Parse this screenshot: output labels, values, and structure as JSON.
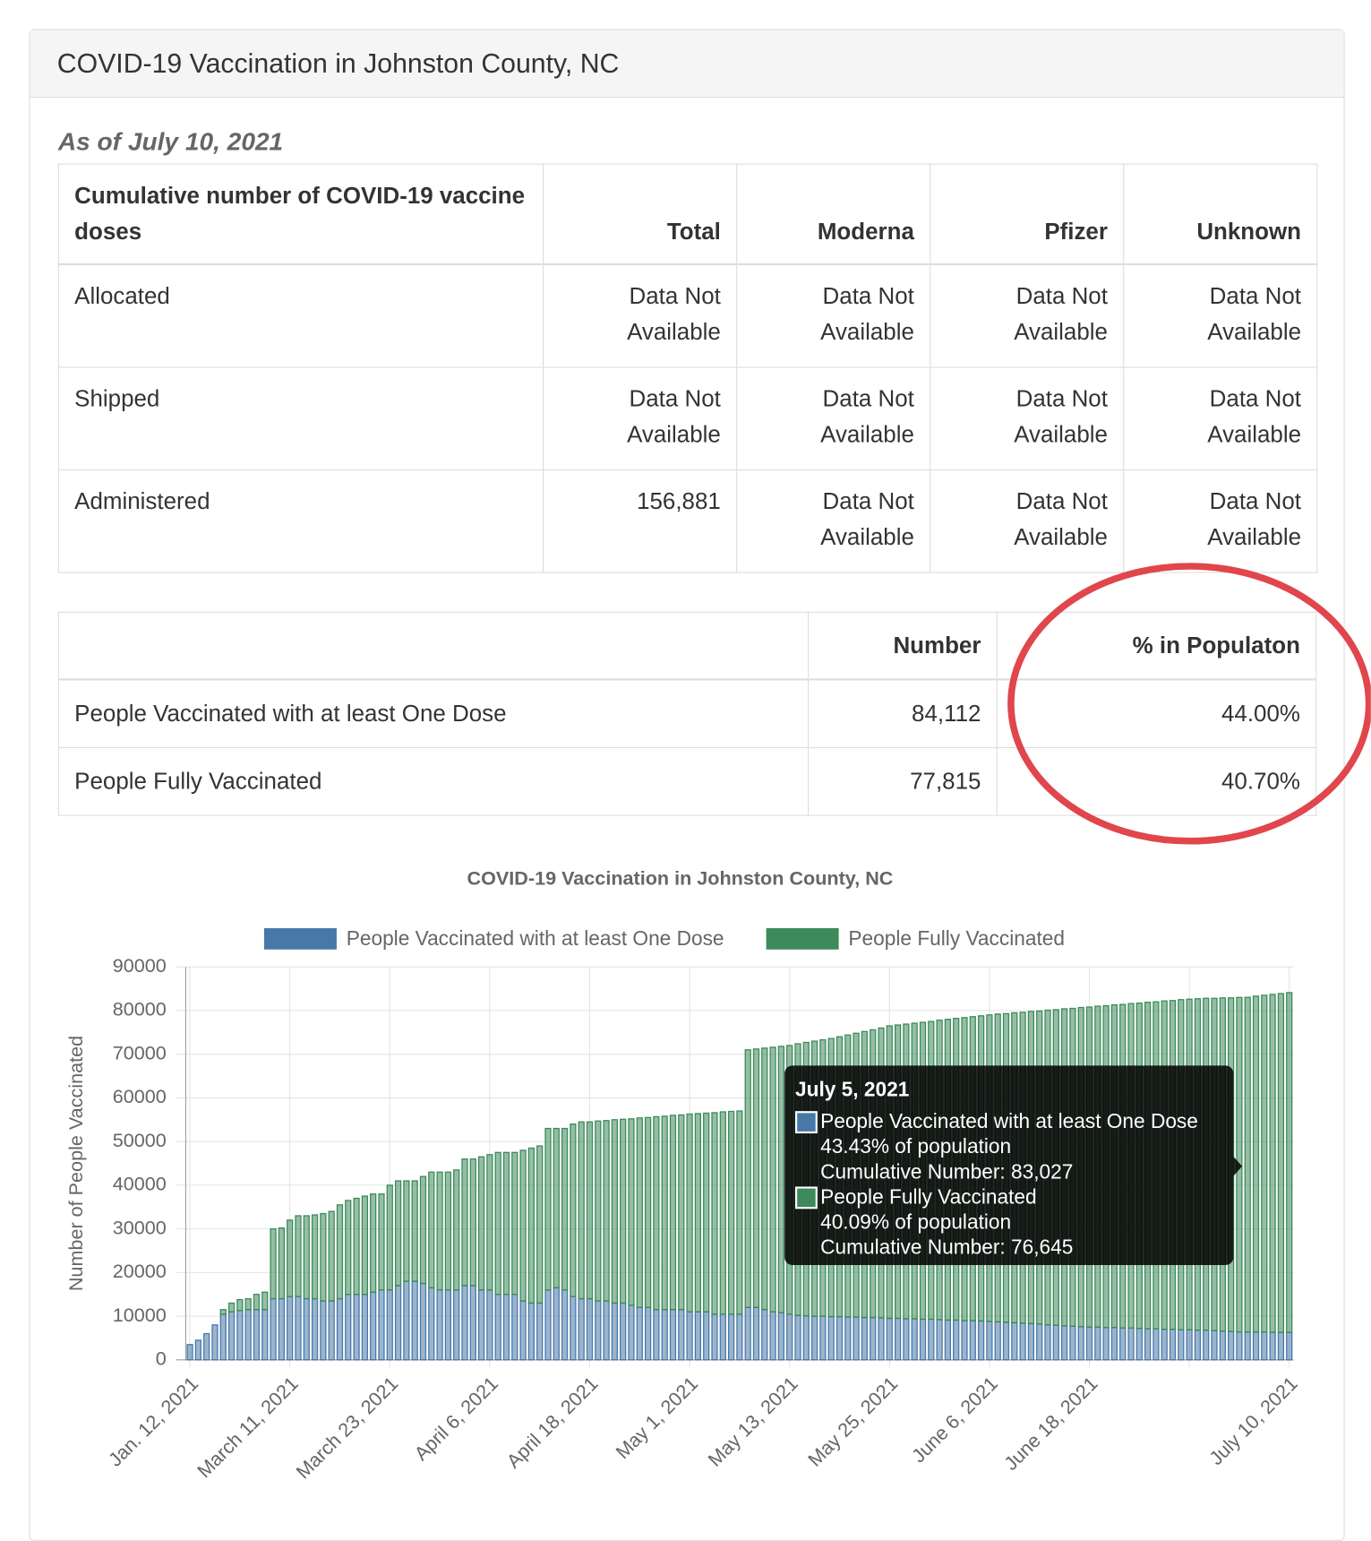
{
  "header": {
    "title": "COVID-19 Vaccination in Johnston County, NC"
  },
  "as_of": "As of July 10, 2021",
  "doses_table": {
    "columns": [
      "Cumulative number of COVID-19 vaccine doses",
      "Total",
      "Moderna",
      "Pfizer",
      "Unknown"
    ],
    "rows": [
      [
        "Allocated",
        "Data Not Available",
        "Data Not Available",
        "Data Not Available",
        "Data Not Available"
      ],
      [
        "Shipped",
        "Data Not Available",
        "Data Not Available",
        "Data Not Available",
        "Data Not Available"
      ],
      [
        "Administered",
        "156,881",
        "Data Not Available",
        "Data Not Available",
        "Data Not Available"
      ]
    ]
  },
  "people_table": {
    "columns": [
      "Number",
      "% in Populaton"
    ],
    "rows": [
      [
        "People Vaccinated with at least One Dose",
        "84,112",
        "44.00%"
      ],
      [
        "People Fully Vaccinated",
        "77,815",
        "40.70%"
      ]
    ]
  },
  "chart_data": {
    "type": "stacked_bar",
    "title": "COVID-19 Vaccination in Johnston County, NC",
    "y_label": "Number of People Vaccinated",
    "ylim": [
      0,
      90000
    ],
    "yticks": [
      0,
      10000,
      20000,
      30000,
      40000,
      50000,
      60000,
      70000,
      80000,
      90000
    ],
    "grid": true,
    "legend": "top",
    "categories": [
      "Jan. 12, 2021",
      null,
      null,
      null,
      null,
      null,
      null,
      null,
      null,
      null,
      null,
      null,
      "March 11, 2021",
      null,
      null,
      null,
      null,
      null,
      null,
      null,
      null,
      null,
      null,
      null,
      "March 23, 2021",
      null,
      null,
      null,
      null,
      null,
      null,
      null,
      null,
      null,
      null,
      null,
      "April 6, 2021",
      null,
      null,
      null,
      null,
      null,
      null,
      null,
      null,
      null,
      null,
      null,
      "April 18, 2021",
      null,
      null,
      null,
      null,
      null,
      null,
      null,
      null,
      null,
      null,
      null,
      "May 1, 2021",
      null,
      null,
      null,
      null,
      null,
      null,
      null,
      null,
      null,
      null,
      null,
      "May 13, 2021",
      null,
      null,
      null,
      null,
      null,
      null,
      null,
      null,
      null,
      null,
      null,
      "May 25, 2021",
      null,
      null,
      null,
      null,
      null,
      null,
      null,
      null,
      null,
      null,
      null,
      "June 6, 2021",
      null,
      null,
      null,
      null,
      null,
      null,
      null,
      null,
      null,
      null,
      null,
      "June 18, 2021",
      null,
      null,
      null,
      null,
      null,
      null,
      null,
      null,
      null,
      null,
      null,
      null,
      null,
      null,
      null,
      null,
      null,
      null,
      null,
      null,
      null,
      null,
      null,
      "July 10, 2021"
    ],
    "series": [
      {
        "name": "People Vaccinated with at least One Dose",
        "color": "#4878a8",
        "values": [
          3500,
          4500,
          6000,
          8000,
          10500,
          11000,
          11300,
          11500,
          11500,
          11500,
          14000,
          14000,
          14500,
          14500,
          14000,
          14000,
          13500,
          13500,
          14000,
          15000,
          15000,
          15000,
          15500,
          16000,
          16000,
          17000,
          18000,
          18000,
          17500,
          16500,
          16000,
          16000,
          16000,
          17000,
          17000,
          16000,
          16000,
          15000,
          15000,
          15000,
          13500,
          13000,
          13000,
          16000,
          16500,
          16000,
          14500,
          14000,
          14000,
          13500,
          13500,
          13000,
          13000,
          12500,
          12000,
          12000,
          11500,
          11500,
          11500,
          11500,
          11000,
          11000,
          11000,
          10500,
          10500,
          10500,
          10500,
          12000,
          12000,
          11500,
          11000,
          10800,
          10500,
          10200,
          10100,
          10000,
          10000,
          9900,
          9900,
          9800,
          9800,
          9700,
          9700,
          9600,
          9500,
          9500,
          9400,
          9400,
          9300,
          9300,
          9200,
          9100,
          9100,
          9000,
          9000,
          8900,
          8800,
          8700,
          8600,
          8500,
          8400,
          8300,
          8200,
          8000,
          7900,
          7800,
          7700,
          7600,
          7500,
          7500,
          7400,
          7400,
          7300,
          7300,
          7200,
          7100,
          7100,
          7000,
          7000,
          6900,
          6900,
          6800,
          6800,
          6700,
          6600,
          6500,
          6400,
          6382,
          6400,
          6400,
          6300,
          6300,
          6297
        ]
      },
      {
        "name": "People Fully Vaccinated",
        "color": "#3d8a5a",
        "values": [
          0,
          0,
          0,
          0,
          1000,
          2000,
          2500,
          2500,
          3500,
          4000,
          16000,
          16200,
          17500,
          18500,
          19000,
          19200,
          20000,
          20500,
          21500,
          21500,
          22000,
          22500,
          22500,
          22000,
          24000,
          24000,
          23000,
          23000,
          24500,
          26500,
          27000,
          27000,
          27500,
          29000,
          29000,
          30500,
          31000,
          32500,
          32500,
          32500,
          34500,
          35500,
          36000,
          37000,
          36500,
          37000,
          39500,
          40500,
          40500,
          41200,
          41300,
          42000,
          42100,
          42700,
          43400,
          43500,
          44200,
          44300,
          44500,
          44600,
          45300,
          45400,
          45500,
          46100,
          46300,
          46400,
          46500,
          59000,
          59200,
          59900,
          60600,
          61000,
          61500,
          62200,
          62600,
          63000,
          63300,
          63700,
          64100,
          64600,
          65000,
          65500,
          65900,
          66400,
          67000,
          67200,
          67500,
          67700,
          68000,
          68200,
          68600,
          68900,
          69100,
          69400,
          69600,
          69900,
          70200,
          70500,
          70700,
          71000,
          71200,
          71500,
          71700,
          72100,
          72300,
          72600,
          72800,
          73100,
          73300,
          73500,
          73700,
          73900,
          74100,
          74300,
          74500,
          74800,
          74900,
          75200,
          75300,
          75600,
          75700,
          75900,
          76000,
          76100,
          76300,
          76400,
          76600,
          76645,
          76900,
          77100,
          77400,
          77600,
          77815
        ]
      }
    ],
    "tooltip": {
      "title": "July 5, 2021",
      "items": [
        {
          "label": "People Vaccinated with at least One Dose",
          "lines": [
            "43.43% of population",
            "Cumulative Number: 83,027"
          ]
        },
        {
          "label": "People Fully Vaccinated",
          "lines": [
            "40.09% of population",
            "Cumulative Number: 76,645"
          ]
        }
      ]
    }
  }
}
